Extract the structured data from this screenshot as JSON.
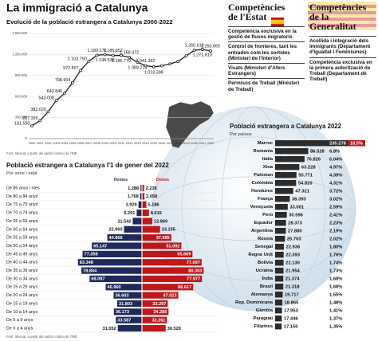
{
  "title": "La immigració a Catalunya",
  "chart_data": [
    {
      "type": "line",
      "title": "Evolució de la població estrangera a Catalunya 2000-2022",
      "source": "Font: Idescat, a partir del padró continu de l'INE",
      "categories": [
        "2000",
        "2001",
        "2002",
        "2003",
        "2004",
        "2005",
        "2006",
        "2007",
        "2008",
        "2009",
        "2010",
        "2011",
        "2012",
        "2013",
        "2014",
        "2015",
        "2016",
        "2017",
        "2018",
        "2019",
        "2020",
        "2021",
        "2022"
      ],
      "values": [
        181590,
        257320,
        382020,
        543008,
        642846,
        798904,
        972507,
        1103790,
        1189279,
        1198538,
        1185852,
        1186779,
        1158472,
        1089214,
        1041362,
        1023398,
        1040000,
        1065000,
        1100000,
        1180000,
        1260619,
        1271810,
        1250665
      ],
      "value_labels": [
        "181.590",
        "257.320",
        "382.020",
        "543.008",
        "642.846",
        "798.904",
        "972.507",
        "1.103.790",
        "1.189.279",
        "1.198.538",
        "1.185.852",
        "1.186.779",
        "1.158.472",
        "1.089.214",
        "1.041.362",
        "1.023.398",
        null,
        null,
        null,
        null,
        "1.260.619",
        "1.271.810",
        "1.250.665"
      ],
      "color": "#222222",
      "ylim": [
        0,
        1500000
      ],
      "yticks": [
        0,
        {
          "value": 300000,
          "label": "300.000"
        },
        {
          "value": 600000,
          "label": "600.000"
        },
        {
          "value": 900000,
          "label": "900.000"
        },
        {
          "value": 1200000,
          "label": "1.200.000"
        },
        {
          "value": 1500000,
          "label": "1.500.000"
        }
      ],
      "grid": true
    },
    {
      "type": "pyramid",
      "title": "Població estrangera a Catalunya l'1 de gener del 2022",
      "subtitle": "Per sexe i edat",
      "source": "Font: Idescat, a partir del padró continu de l'INE",
      "categories": [
        "De 85 anys i més",
        "De 80 a 84 anys",
        "De 75 a 79 anys",
        "De 70 a 74 anys",
        "De 65 a 69 anys",
        "De 60 a 64 anys",
        "De 55 a 59 anys",
        "De 50 a 54 anys",
        "De 45 a 49 anys",
        "De 40 a 44 anys",
        "De 35 a 39 anys",
        "De 30 a 34 anys",
        "De 25 a 29 anys",
        "De 20 a 24 anys",
        "De 15 a 19 anys",
        "De 10 a 14 anys",
        "De 5 a 9 anys",
        "De 0 a 4 anys"
      ],
      "series": [
        {
          "name": "Homes",
          "color": "#1f2a5c",
          "values": [
            1288,
            1768,
            3929,
            6291,
            11542,
            22960,
            44868,
            65147,
            77358,
            83348,
            78804,
            68087,
            46960,
            36603,
            31803,
            36173,
            33587,
            31052
          ],
          "value_labels": [
            "1.288",
            "1.768",
            "3.929",
            "6.291",
            "11.542",
            "22.960",
            "44.868",
            "65.147",
            "77.358",
            "83.348",
            "78.804",
            "68.087",
            "46.960",
            "36.603",
            "31.803",
            "36.173",
            "33.587",
            "31.052"
          ]
        },
        {
          "name": "Dones",
          "color": "#c0171b",
          "values": [
            2235,
            2658,
            5186,
            8615,
            12969,
            23155,
            37885,
            51092,
            65669,
            77697,
            80303,
            77977,
            66617,
            47023,
            33297,
            34285,
            32261,
            30520
          ],
          "value_labels": [
            "2.235",
            "2.658",
            "5.186",
            "8.615",
            "12.969",
            "23.155",
            "37.885",
            "51.092",
            "65.669",
            "77.697",
            "80.303",
            "77.977",
            "66.617",
            "47.023",
            "33.297",
            "34.285",
            "32.261",
            "30.520"
          ]
        }
      ],
      "xlim": [
        0,
        90000
      ]
    },
    {
      "type": "hbar",
      "title": "Població estrangera a Catalunya 2022",
      "subtitle": "Per països",
      "categories": [
        "Marroc",
        "Romania",
        "Itàlia",
        "Xina",
        "Pakistan",
        "Colòmbia",
        "Hondures",
        "França",
        "Veneçuela",
        "Perú",
        "Equador",
        "Argentina",
        "Rússia",
        "Senegal",
        "Regne Unit",
        "Bolívia",
        "Ucraïna",
        "Índia",
        "Brasil",
        "Alemanya",
        "Rep. Dominicana",
        "Gàmbia",
        "Paraguai",
        "Filipines"
      ],
      "values": [
        235278,
        86528,
        76826,
        63228,
        55771,
        54820,
        47321,
        38393,
        33001,
        30596,
        28373,
        27880,
        25703,
        22936,
        22393,
        22130,
        21954,
        21374,
        21318,
        19717,
        18865,
        17953,
        17446,
        17150
      ],
      "value_labels": [
        "235.278",
        "86.528",
        "76.826",
        "63.228",
        "55.771",
        "54.820",
        "47.321",
        "38.393",
        "33.001",
        "30.596",
        "28.373",
        "27.880",
        "25.703",
        "22.936",
        "22.393",
        "22.130",
        "21.954",
        "21.374",
        "21.318",
        "19.717",
        "18.865",
        "17.953",
        "17.446",
        "17.150"
      ],
      "percentages": [
        18.5,
        6.8,
        6.04,
        4.97,
        4.39,
        4.31,
        3.72,
        3.02,
        2.59,
        2.41,
        2.23,
        2.19,
        2.02,
        1.8,
        1.76,
        1.74,
        1.73,
        1.68,
        1.68,
        1.55,
        1.48,
        1.41,
        1.37,
        1.35
      ],
      "percentage_labels": [
        "18,5%",
        "6,8%",
        "6,04%",
        "4,97%",
        "4,39%",
        "4,31%",
        "3,72%",
        "3,02%",
        "2,59%",
        "2,41%",
        "2,23%",
        "2,19%",
        "2,02%",
        "1,80%",
        "1,76%",
        "1,74%",
        "1,73%",
        "1,68%",
        "1,68%",
        "1,55%",
        "1,48%",
        "1,41%",
        "1,37%",
        "1,35%"
      ],
      "color": "#2b2b2b",
      "xlim": [
        0,
        250000
      ]
    }
  ],
  "competencies": {
    "estat": {
      "title": "Competències de l'Estat",
      "items": [
        "Competència exclusiva en la gestió de fluxos migratoris",
        "Control de fronteres, tant les entrades com les sortides (Ministeri de l'Interior)",
        "Visats (Ministeri d'Afers Estrangers)",
        "Permisos de Treball (Ministeri de Treball)"
      ]
    },
    "generalitat": {
      "title": "Competències de la Generalitat",
      "items": [
        "Acollida i integració dels immigrants (Departament d'Igualtat i Feminismes)",
        "Competència exclusiva en la primera autorització de Treball (Departament de Treball)"
      ]
    }
  }
}
